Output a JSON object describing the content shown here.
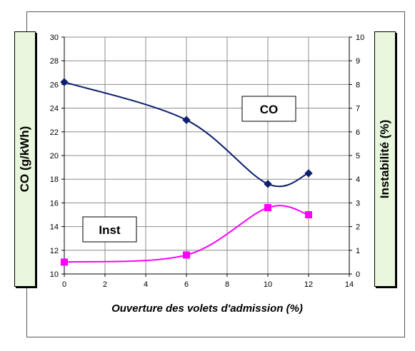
{
  "chart_data": {
    "type": "line",
    "title": "",
    "xlabel": "Ouverture des volets d'admission (%)",
    "ylabel_left": "CO (g/kWh)",
    "ylabel_right": "Instabilité (%)",
    "xlim": [
      0,
      14
    ],
    "ylim_left": [
      10,
      30
    ],
    "ylim_right": [
      0,
      10
    ],
    "x_ticks": [
      "0",
      "2",
      "4",
      "6",
      "8",
      "10",
      "12",
      "14"
    ],
    "y_left_ticks": [
      "10",
      "12",
      "14",
      "16",
      "18",
      "20",
      "22",
      "24",
      "26",
      "28",
      "30"
    ],
    "y_right_ticks": [
      "0",
      "1",
      "2",
      "3",
      "4",
      "5",
      "6",
      "7",
      "8",
      "9",
      "10"
    ],
    "grid": true,
    "series": [
      {
        "name": "CO",
        "axis": "left",
        "color": "#0d1f6e",
        "marker": "diamond",
        "x": [
          0,
          6,
          10,
          12
        ],
        "values": [
          26.2,
          23.0,
          17.6,
          18.5
        ]
      },
      {
        "name": "Inst",
        "axis": "right",
        "color": "#ff00ff",
        "marker": "square",
        "x": [
          0,
          6,
          10,
          12
        ],
        "values": [
          0.5,
          0.8,
          2.8,
          2.5
        ]
      }
    ],
    "annotations": [
      "CO",
      "Inst"
    ]
  }
}
